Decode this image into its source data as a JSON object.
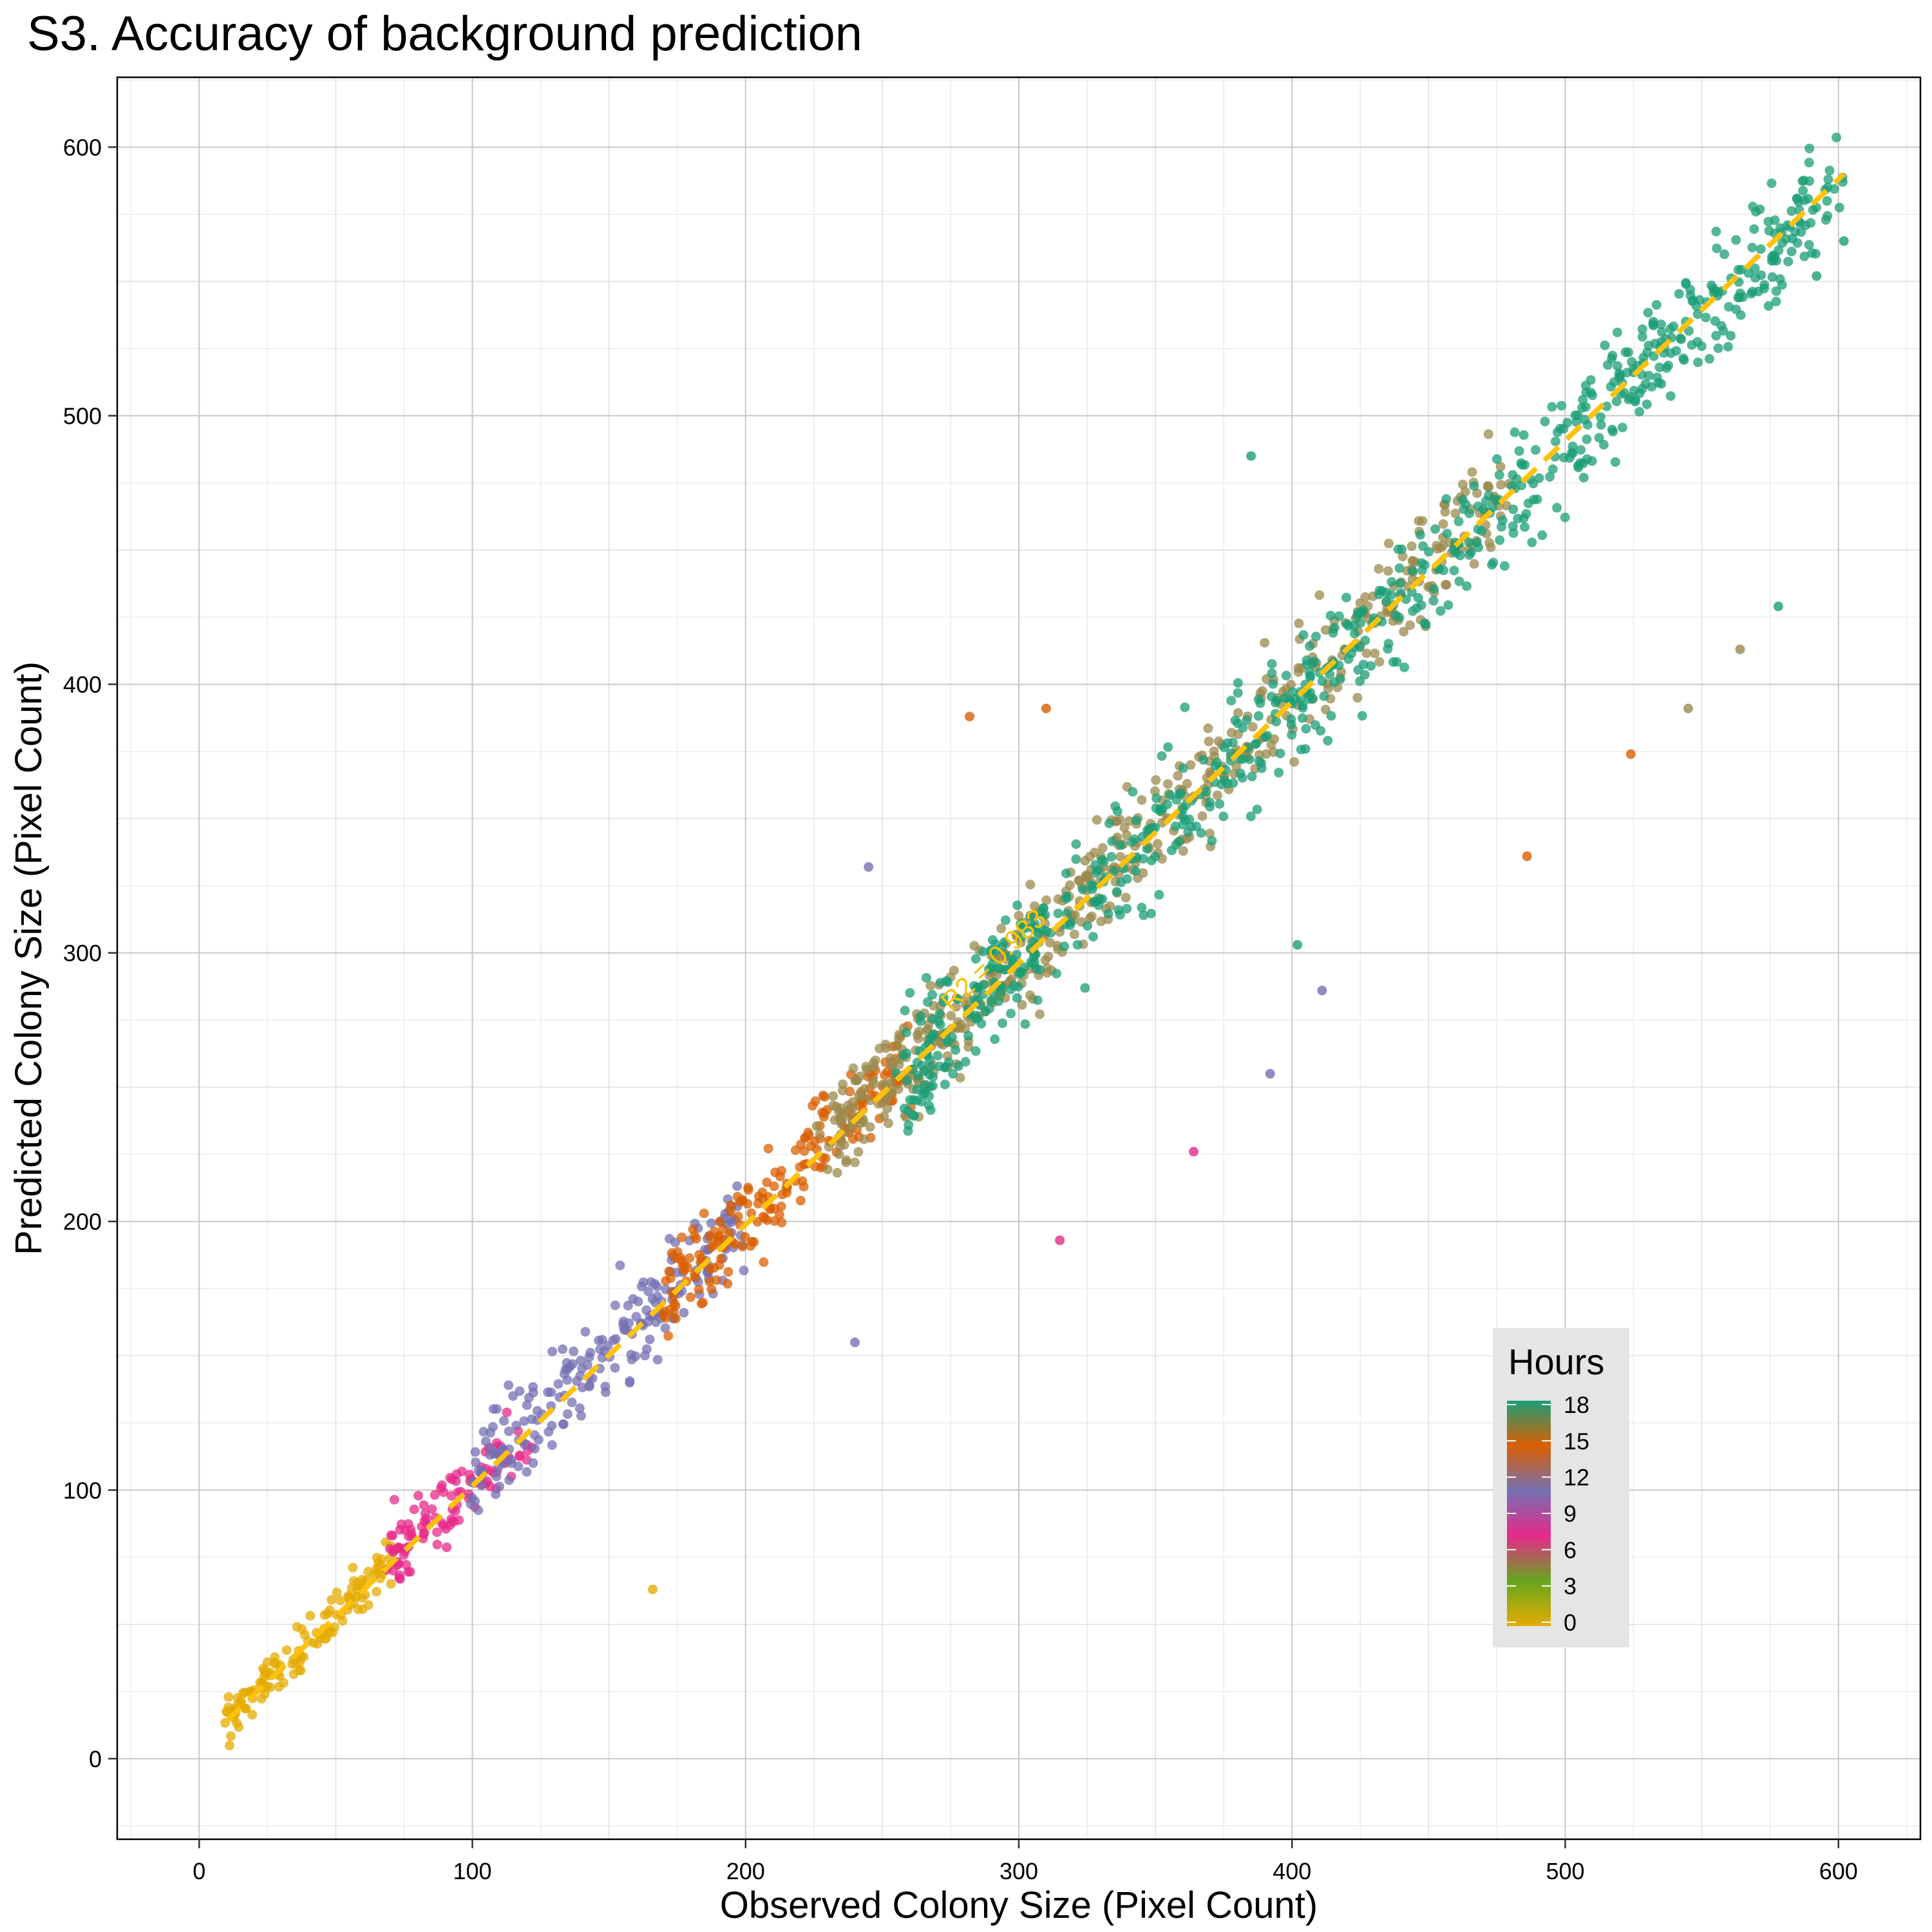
{
  "chart_data": {
    "type": "scatter",
    "title": "S3. Accuracy of background prediction",
    "xlabel": "Observed Colony Size (Pixel Count)",
    "ylabel": "Predicted Colony Size (Pixel Count)",
    "xlim": [
      -30,
      630
    ],
    "ylim": [
      -30,
      626
    ],
    "xticks": [
      0,
      100,
      200,
      300,
      400,
      500,
      600
    ],
    "yticks": [
      0,
      100,
      200,
      300,
      400,
      500,
      600
    ],
    "xtick_labels": [
      "0",
      "100",
      "200",
      "300",
      "400",
      "500",
      "600"
    ],
    "ytick_labels": [
      "0",
      "100",
      "200",
      "300",
      "400",
      "500",
      "600"
    ],
    "grid": true,
    "fit_line": {
      "x": [
        10,
        602
      ],
      "y": [
        14,
        590
      ],
      "color": "#ffc20a",
      "style": "dashed"
    },
    "annotation": {
      "text": "R2 = 0.983",
      "x": 293,
      "y": 295,
      "color": "#f5c400"
    },
    "legend": {
      "title": "Hours",
      "placement": "bottom-right inside",
      "labels": [
        "18",
        "15",
        "12",
        "9",
        "6",
        "3",
        "0"
      ],
      "values": [
        18,
        15,
        12,
        9,
        6,
        3,
        0
      ],
      "colors": [
        "#1b9e77",
        "#d95f02",
        "#7570b3",
        "#e7298a",
        "#66a61e",
        "#e6ab02"
      ]
    },
    "series": [
      {
        "name": "0",
        "color": "#e6ab02",
        "x_range": [
          10,
          70
        ],
        "slope": 1.0,
        "spread": 6
      },
      {
        "name": "6",
        "color": "#e7298a",
        "x_range": [
          70,
          120
        ],
        "slope": 1.0,
        "spread": 10
      },
      {
        "name": "9",
        "color": "#7570b3",
        "x_range": [
          100,
          200
        ],
        "slope": 0.99,
        "spread": 12
      },
      {
        "name": "12",
        "color": "#d95f02",
        "x_range": [
          170,
          260
        ],
        "slope": 0.99,
        "spread": 12
      },
      {
        "name": "15",
        "color": "#9b8a4e",
        "x_range": [
          230,
          480
        ],
        "slope": 0.98,
        "spread": 14
      },
      {
        "name": "18",
        "color": "#1b9e77",
        "x_range": [
          260,
          602
        ],
        "slope": 0.97,
        "spread": 16
      }
    ],
    "outliers": [
      {
        "x": 166,
        "y": 63,
        "color": "#e6ab02"
      },
      {
        "x": 240,
        "y": 155,
        "color": "#7570b3"
      },
      {
        "x": 315,
        "y": 193,
        "color": "#e7298a"
      },
      {
        "x": 364,
        "y": 226,
        "color": "#e7298a"
      },
      {
        "x": 392,
        "y": 255,
        "color": "#7570b3"
      },
      {
        "x": 411,
        "y": 286,
        "color": "#7570b3"
      },
      {
        "x": 402,
        "y": 303,
        "color": "#1b9e77"
      },
      {
        "x": 486,
        "y": 336,
        "color": "#d95f02"
      },
      {
        "x": 524,
        "y": 374,
        "color": "#d95f02"
      },
      {
        "x": 545,
        "y": 391,
        "color": "#9b8a4e"
      },
      {
        "x": 564,
        "y": 413,
        "color": "#9b8a4e"
      },
      {
        "x": 578,
        "y": 429,
        "color": "#1b9e77"
      },
      {
        "x": 602,
        "y": 565,
        "color": "#1b9e77"
      },
      {
        "x": 592,
        "y": 552,
        "color": "#1b9e77"
      },
      {
        "x": 385,
        "y": 485,
        "color": "#1b9e77"
      },
      {
        "x": 245,
        "y": 332,
        "color": "#7570b3"
      },
      {
        "x": 310,
        "y": 391,
        "color": "#d95f02"
      },
      {
        "x": 282,
        "y": 388,
        "color": "#d95f02"
      }
    ]
  }
}
